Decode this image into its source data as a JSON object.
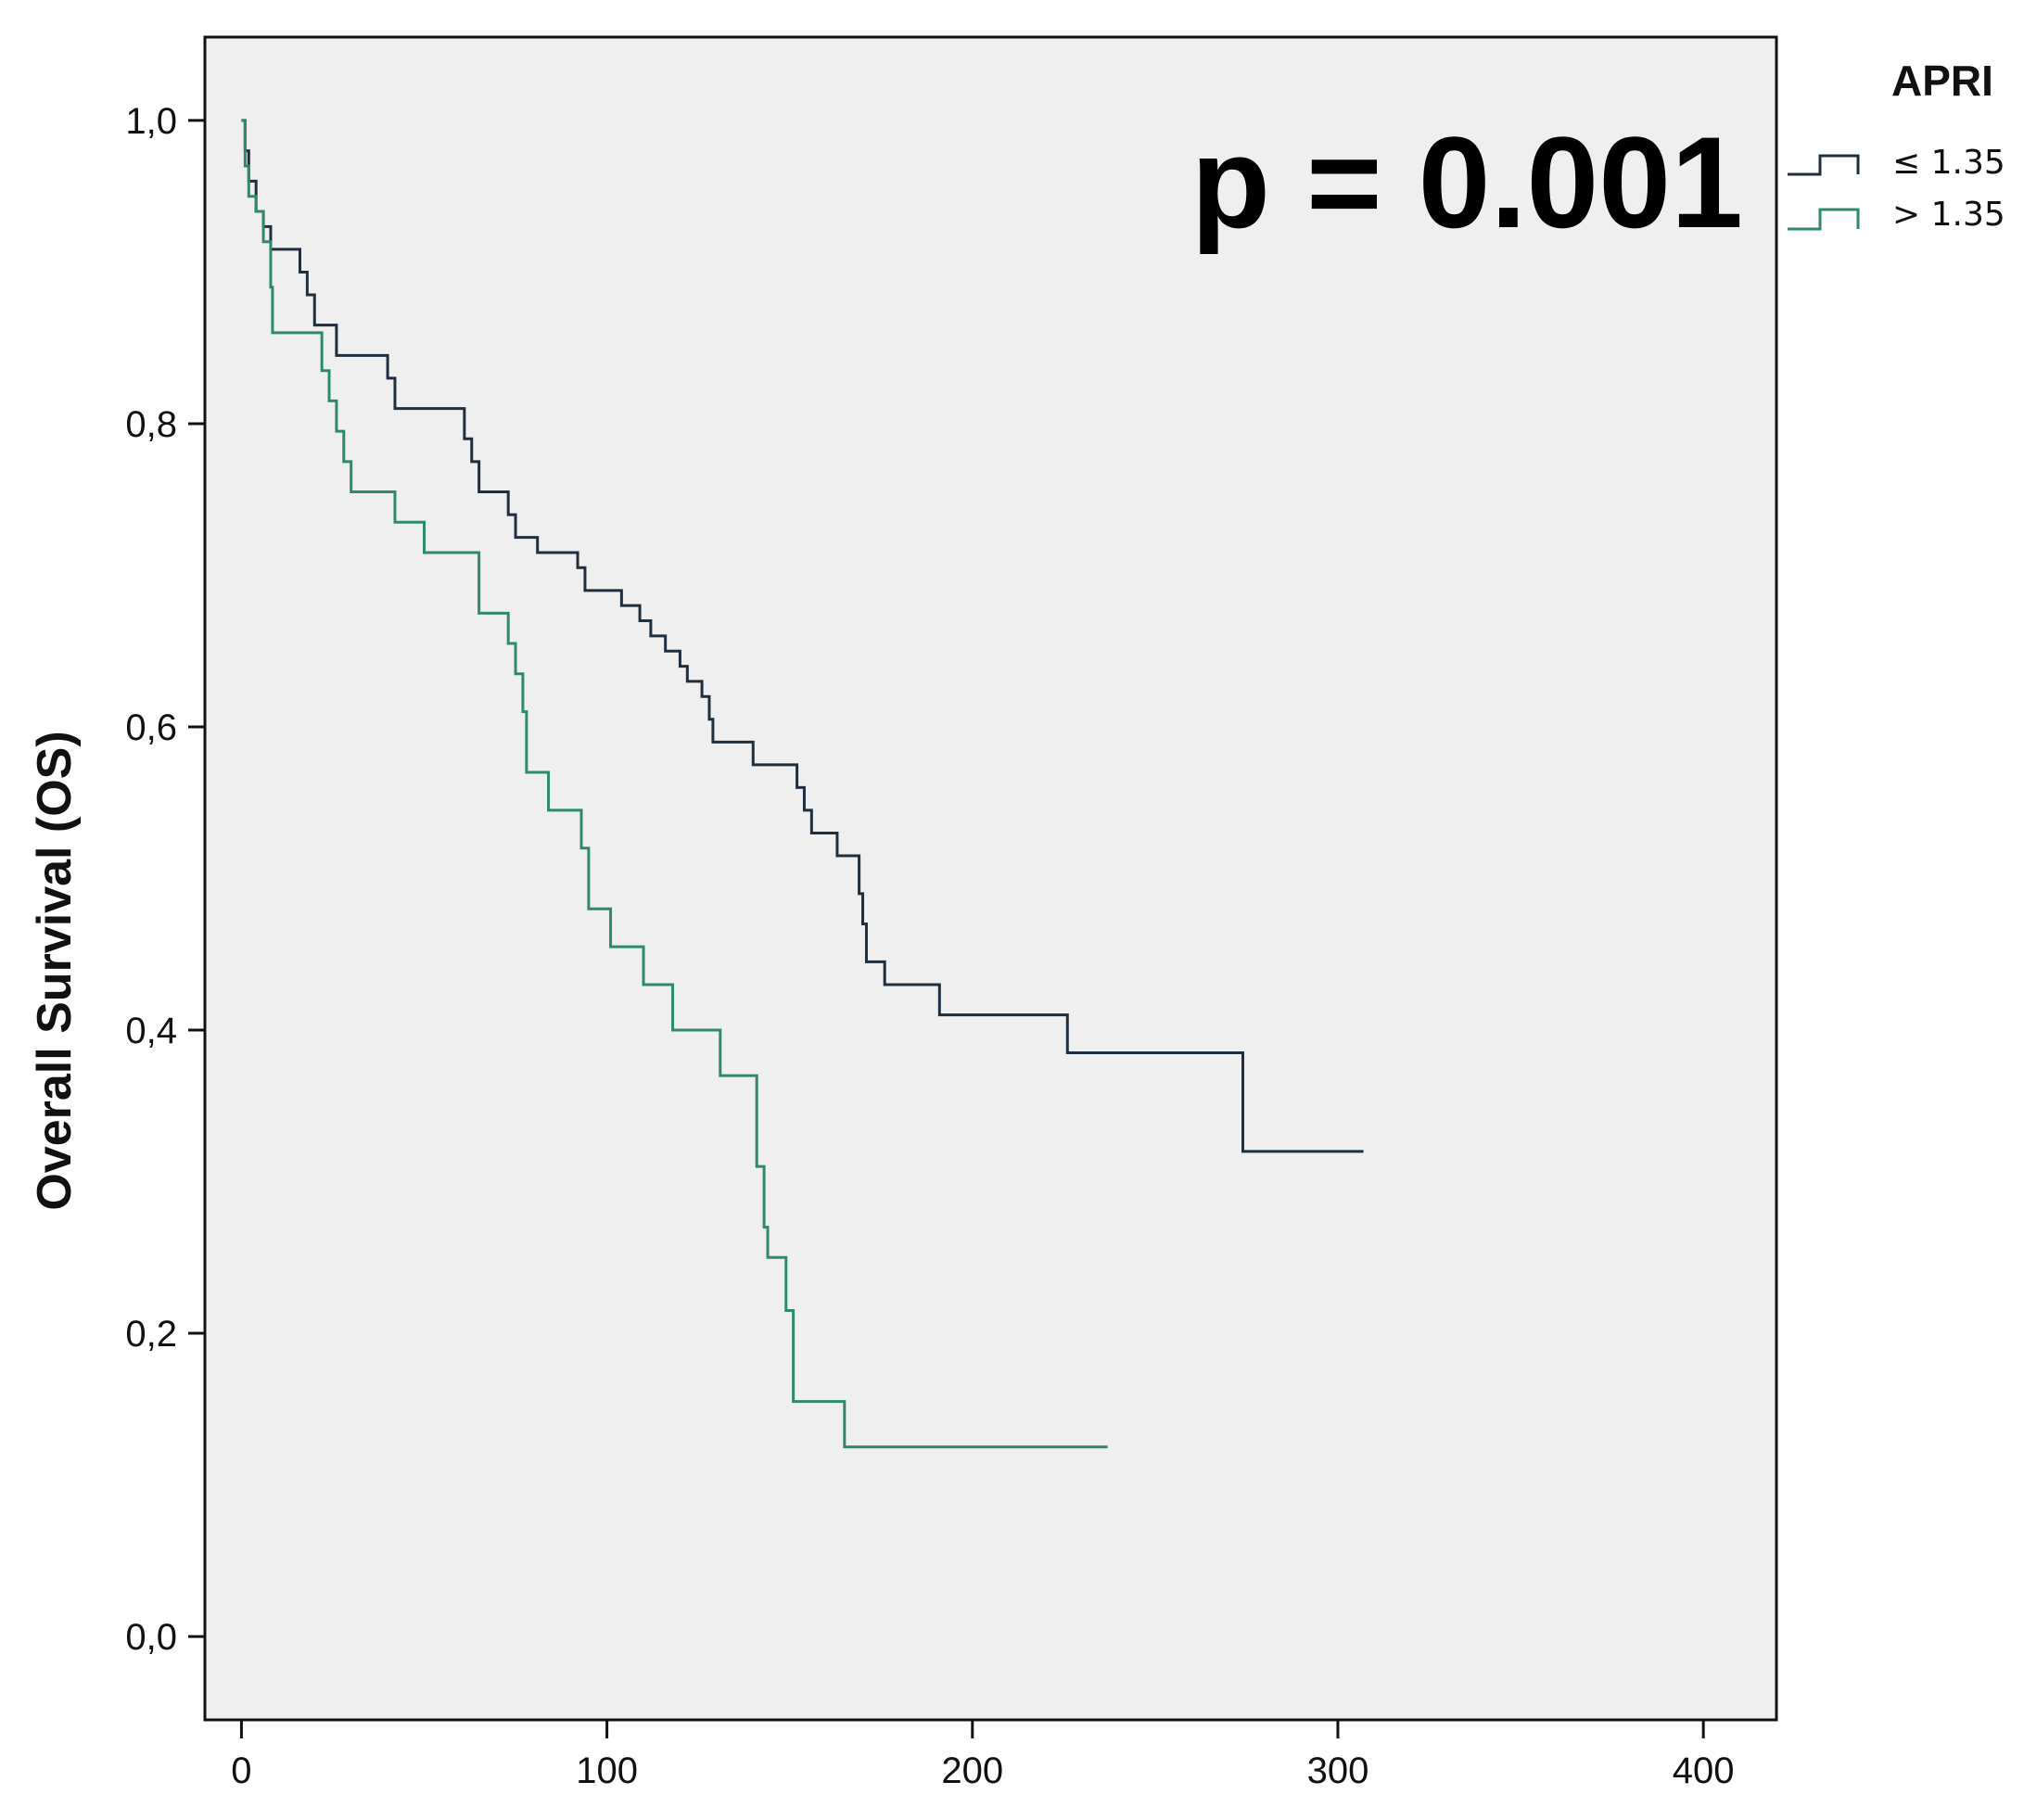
{
  "chart_data": {
    "type": "line",
    "subtype": "kaplan-meier step",
    "title": "",
    "xlabel": "",
    "ylabel": "Overall Survival (OS)",
    "xlim": [
      -10,
      420
    ],
    "ylim": [
      -0.055,
      1.055
    ],
    "x_ticks": [
      0,
      100,
      200,
      300,
      400
    ],
    "x_tick_labels": [
      "0",
      "100",
      "200",
      "300",
      "400"
    ],
    "y_ticks": [
      0,
      0.2,
      0.4,
      0.6,
      0.8,
      1.0
    ],
    "y_tick_labels": [
      "0,0",
      "0,2",
      "0,4",
      "0,6",
      "0,8",
      "1,0"
    ],
    "grid": false,
    "legend": {
      "title": "APRI",
      "position": "outside-top-right",
      "entries": [
        "≤ 1.35",
        "> 1.35"
      ]
    },
    "annotation": "p = 0.001",
    "series": [
      {
        "name": "≤ 1.35",
        "color": "#1f2f3f",
        "points": [
          [
            0,
            1.0
          ],
          [
            1,
            0.98
          ],
          [
            2,
            0.96
          ],
          [
            4,
            0.94
          ],
          [
            6,
            0.93
          ],
          [
            8,
            0.915
          ],
          [
            14,
            0.915
          ],
          [
            16,
            0.9
          ],
          [
            18,
            0.885
          ],
          [
            20,
            0.865
          ],
          [
            25,
            0.865
          ],
          [
            26,
            0.845
          ],
          [
            38,
            0.845
          ],
          [
            40,
            0.83
          ],
          [
            42,
            0.81
          ],
          [
            60,
            0.81
          ],
          [
            61,
            0.79
          ],
          [
            63,
            0.775
          ],
          [
            65,
            0.755
          ],
          [
            71,
            0.755
          ],
          [
            73,
            0.74
          ],
          [
            75,
            0.725
          ],
          [
            80,
            0.725
          ],
          [
            81,
            0.715
          ],
          [
            91,
            0.715
          ],
          [
            92,
            0.705
          ],
          [
            94,
            0.69
          ],
          [
            103,
            0.69
          ],
          [
            104,
            0.68
          ],
          [
            109,
            0.67
          ],
          [
            112,
            0.66
          ],
          [
            116,
            0.65
          ],
          [
            120,
            0.64
          ],
          [
            122,
            0.63
          ],
          [
            126,
            0.62
          ],
          [
            128,
            0.605
          ],
          [
            129,
            0.59
          ],
          [
            139,
            0.59
          ],
          [
            140,
            0.575
          ],
          [
            151,
            0.575
          ],
          [
            152,
            0.56
          ],
          [
            154,
            0.545
          ],
          [
            156,
            0.53
          ],
          [
            162,
            0.53
          ],
          [
            163,
            0.515
          ],
          [
            168,
            0.515
          ],
          [
            169,
            0.49
          ],
          [
            170,
            0.47
          ],
          [
            171,
            0.445
          ],
          [
            175,
            0.445
          ],
          [
            176,
            0.43
          ],
          [
            190,
            0.43
          ],
          [
            191,
            0.41
          ],
          [
            225,
            0.41
          ],
          [
            226,
            0.385
          ],
          [
            273,
            0.385
          ],
          [
            274,
            0.32
          ],
          [
            307,
            0.32
          ]
        ]
      },
      {
        "name": "> 1.35",
        "color": "#2e8a6c",
        "points": [
          [
            0,
            1.0
          ],
          [
            1,
            0.97
          ],
          [
            2,
            0.95
          ],
          [
            4,
            0.94
          ],
          [
            6,
            0.92
          ],
          [
            8,
            0.89
          ],
          [
            8.5,
            0.86
          ],
          [
            21,
            0.86
          ],
          [
            22,
            0.835
          ],
          [
            24,
            0.815
          ],
          [
            26,
            0.795
          ],
          [
            28,
            0.775
          ],
          [
            30,
            0.755
          ],
          [
            41,
            0.755
          ],
          [
            42,
            0.735
          ],
          [
            49,
            0.735
          ],
          [
            50,
            0.715
          ],
          [
            64,
            0.715
          ],
          [
            65,
            0.675
          ],
          [
            72,
            0.675
          ],
          [
            73,
            0.655
          ],
          [
            75,
            0.635
          ],
          [
            77,
            0.61
          ],
          [
            78,
            0.57
          ],
          [
            83,
            0.57
          ],
          [
            84,
            0.545
          ],
          [
            92,
            0.545
          ],
          [
            93,
            0.52
          ],
          [
            95,
            0.48
          ],
          [
            100,
            0.48
          ],
          [
            101,
            0.455
          ],
          [
            109,
            0.455
          ],
          [
            110,
            0.43
          ],
          [
            117,
            0.43
          ],
          [
            118,
            0.4
          ],
          [
            130,
            0.4
          ],
          [
            131,
            0.37
          ],
          [
            140,
            0.37
          ],
          [
            141,
            0.31
          ],
          [
            143,
            0.27
          ],
          [
            144,
            0.25
          ],
          [
            148,
            0.25
          ],
          [
            149,
            0.215
          ],
          [
            151,
            0.155
          ],
          [
            164,
            0.155
          ],
          [
            165,
            0.125
          ],
          [
            237,
            0.125
          ]
        ]
      }
    ]
  }
}
